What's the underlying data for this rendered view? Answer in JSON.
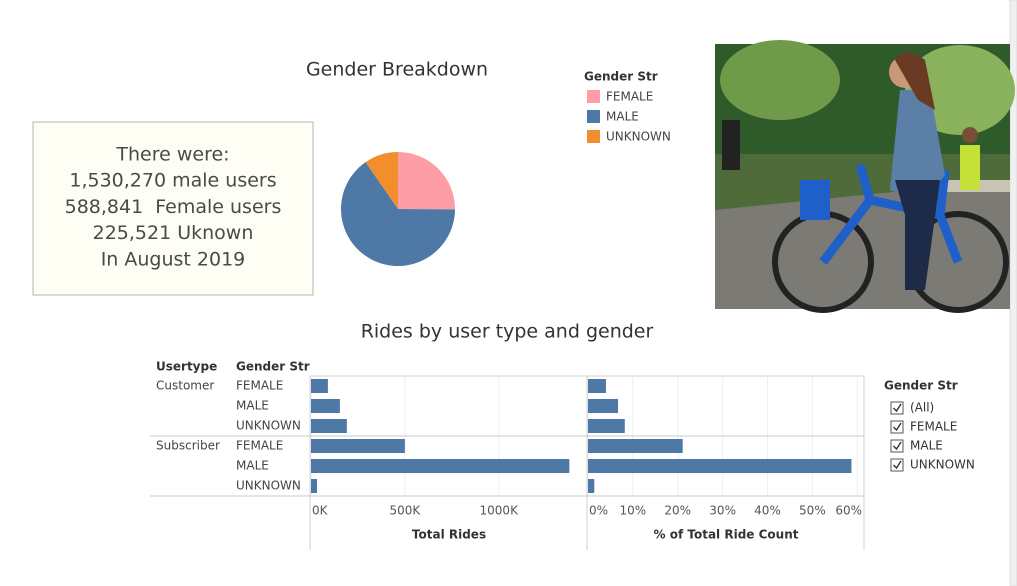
{
  "chart_data": [
    {
      "type": "pie",
      "title": "Gender Breakdown",
      "legend_title": "Gender Str",
      "categories": [
        "FEMALE",
        "MALE",
        "UNKNOWN"
      ],
      "values": [
        588841,
        1530270,
        225521
      ],
      "colors": [
        "#ff9da7",
        "#4e79a7",
        "#f28e2b"
      ]
    },
    {
      "type": "bar",
      "title": "Rides by user type and gender",
      "row_headers": [
        "Usertype",
        "Gender Str"
      ],
      "groups": [
        "Customer",
        "Subscriber"
      ],
      "categories": [
        [
          "FEMALE",
          "MALE",
          "UNKNOWN"
        ],
        [
          "FEMALE",
          "MALE",
          "UNKNOWN"
        ]
      ],
      "color": "#4e79a7",
      "panels": [
        {
          "xlabel": "Total Rides",
          "xlim": [
            0,
            1470000
          ],
          "xticks": [
            {
              "value": 0,
              "label": "0K"
            },
            {
              "value": 500000,
              "label": "500K"
            },
            {
              "value": 1000000,
              "label": "1000K"
            }
          ],
          "values": [
            [
              90000,
              154000,
              191000
            ],
            [
              500000,
              1376000,
              32000
            ]
          ]
        },
        {
          "xlabel": "% of Total Ride Count",
          "xlim": [
            0,
            61.5
          ],
          "xticks": [
            {
              "value": 0,
              "label": "0%"
            },
            {
              "value": 10,
              "label": "10%"
            },
            {
              "value": 20,
              "label": "20%"
            },
            {
              "value": 30,
              "label": "30%"
            },
            {
              "value": 40,
              "label": "40%"
            },
            {
              "value": 50,
              "label": "50%"
            },
            {
              "value": 60,
              "label": "60%"
            }
          ],
          "values": [
            [
              4.0,
              6.7,
              8.2
            ],
            [
              21.1,
              58.7,
              1.4
            ]
          ]
        }
      ]
    }
  ],
  "text_box": {
    "lines": [
      "There were:",
      "1,530,270 male users",
      "588,841  Female users",
      "225,521 Uknown",
      "In August 2019"
    ]
  },
  "filter": {
    "title": "Gender Str",
    "items": [
      "(All)",
      "FEMALE",
      "MALE",
      "UNKNOWN"
    ]
  }
}
